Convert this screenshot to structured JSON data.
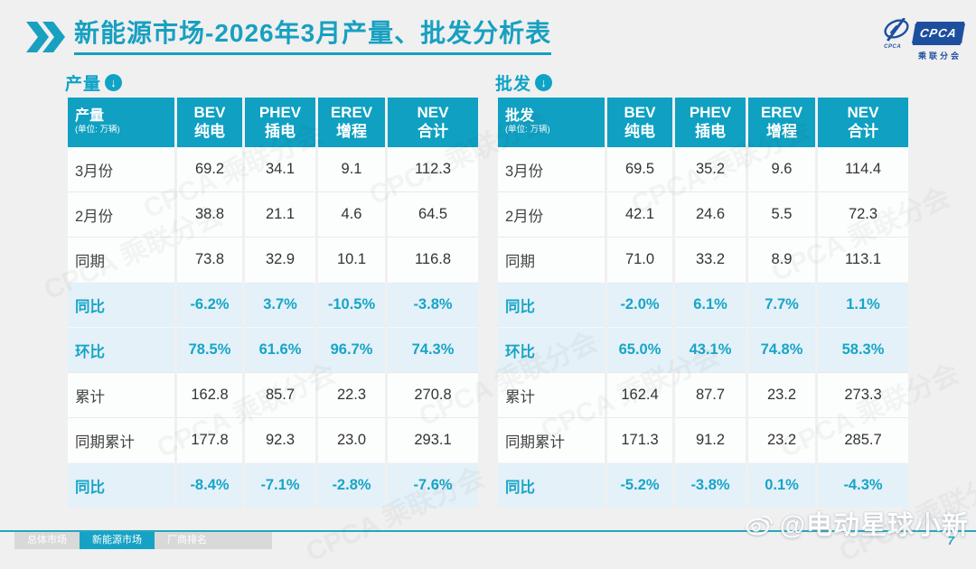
{
  "title": {
    "text": "新能源市场-2026年3月产量、批发分析表"
  },
  "logo": {
    "brand": "CPCA",
    "brand_cn": "乘联分会",
    "emblem_sub": "CPCA"
  },
  "background_watermark": "CPCA 乘联分会",
  "section_icons": {
    "down_arrow": "↓"
  },
  "tables": [
    {
      "id": "production",
      "section_label": "产量",
      "header_label": "产量",
      "unit": "(单位: 万辆)",
      "columns": [
        {
          "line1": "BEV",
          "line2": "纯电"
        },
        {
          "line1": "PHEV",
          "line2": "插电"
        },
        {
          "line1": "EREV",
          "line2": "增程"
        },
        {
          "line1": "NEV",
          "line2": "合计"
        }
      ],
      "rows": [
        {
          "label": "3月份",
          "values": [
            "69.2",
            "34.1",
            "9.1",
            "112.3"
          ],
          "highlight": false
        },
        {
          "label": "2月份",
          "values": [
            "38.8",
            "21.1",
            "4.6",
            "64.5"
          ],
          "highlight": false
        },
        {
          "label": "同期",
          "values": [
            "73.8",
            "32.9",
            "10.1",
            "116.8"
          ],
          "highlight": false
        },
        {
          "label": "同比",
          "values": [
            "-6.2%",
            "3.7%",
            "-10.5%",
            "-3.8%"
          ],
          "highlight": true
        },
        {
          "label": "环比",
          "values": [
            "78.5%",
            "61.6%",
            "96.7%",
            "74.3%"
          ],
          "highlight": true
        },
        {
          "label": "累计",
          "values": [
            "162.8",
            "85.7",
            "22.3",
            "270.8"
          ],
          "highlight": false
        },
        {
          "label": "同期累计",
          "values": [
            "177.8",
            "92.3",
            "23.0",
            "293.1"
          ],
          "highlight": false
        },
        {
          "label": "同比",
          "values": [
            "-8.4%",
            "-7.1%",
            "-2.8%",
            "-7.6%"
          ],
          "highlight": true
        }
      ]
    },
    {
      "id": "wholesale",
      "section_label": "批发",
      "header_label": "批发",
      "unit": "(单位: 万辆)",
      "columns": [
        {
          "line1": "BEV",
          "line2": "纯电"
        },
        {
          "line1": "PHEV",
          "line2": "插电"
        },
        {
          "line1": "EREV",
          "line2": "增程"
        },
        {
          "line1": "NEV",
          "line2": "合计"
        }
      ],
      "rows": [
        {
          "label": "3月份",
          "values": [
            "69.5",
            "35.2",
            "9.6",
            "114.4"
          ],
          "highlight": false
        },
        {
          "label": "2月份",
          "values": [
            "42.1",
            "24.6",
            "5.5",
            "72.3"
          ],
          "highlight": false
        },
        {
          "label": "同期",
          "values": [
            "71.0",
            "33.2",
            "8.9",
            "113.1"
          ],
          "highlight": false
        },
        {
          "label": "同比",
          "values": [
            "-2.0%",
            "6.1%",
            "7.7%",
            "1.1%"
          ],
          "highlight": true
        },
        {
          "label": "环比",
          "values": [
            "65.0%",
            "43.1%",
            "74.8%",
            "58.3%"
          ],
          "highlight": true
        },
        {
          "label": "累计",
          "values": [
            "162.4",
            "87.7",
            "23.2",
            "273.3"
          ],
          "highlight": false
        },
        {
          "label": "同期累计",
          "values": [
            "171.3",
            "91.2",
            "23.2",
            "285.7"
          ],
          "highlight": false
        },
        {
          "label": "同比",
          "values": [
            "-5.2%",
            "-3.8%",
            "0.1%",
            "-4.3%"
          ],
          "highlight": true
        }
      ]
    }
  ],
  "footer": {
    "tabs": [
      {
        "label": "总体市场",
        "active": false
      },
      {
        "label": "新能源市场",
        "active": true
      },
      {
        "label": "厂商排名",
        "active": false
      }
    ],
    "watermark": "@电动星球小新",
    "page_number": "7"
  },
  "colors": {
    "accent": "#0fa0c2",
    "title": "#17a0c0",
    "highlight_row_bg": "#e4f1f8",
    "highlight_text": "#17a5c8",
    "logo_blue": "#1e4f9e",
    "footer_line": "#28a6bd",
    "tab_inactive_bg": "#d9d9da"
  }
}
